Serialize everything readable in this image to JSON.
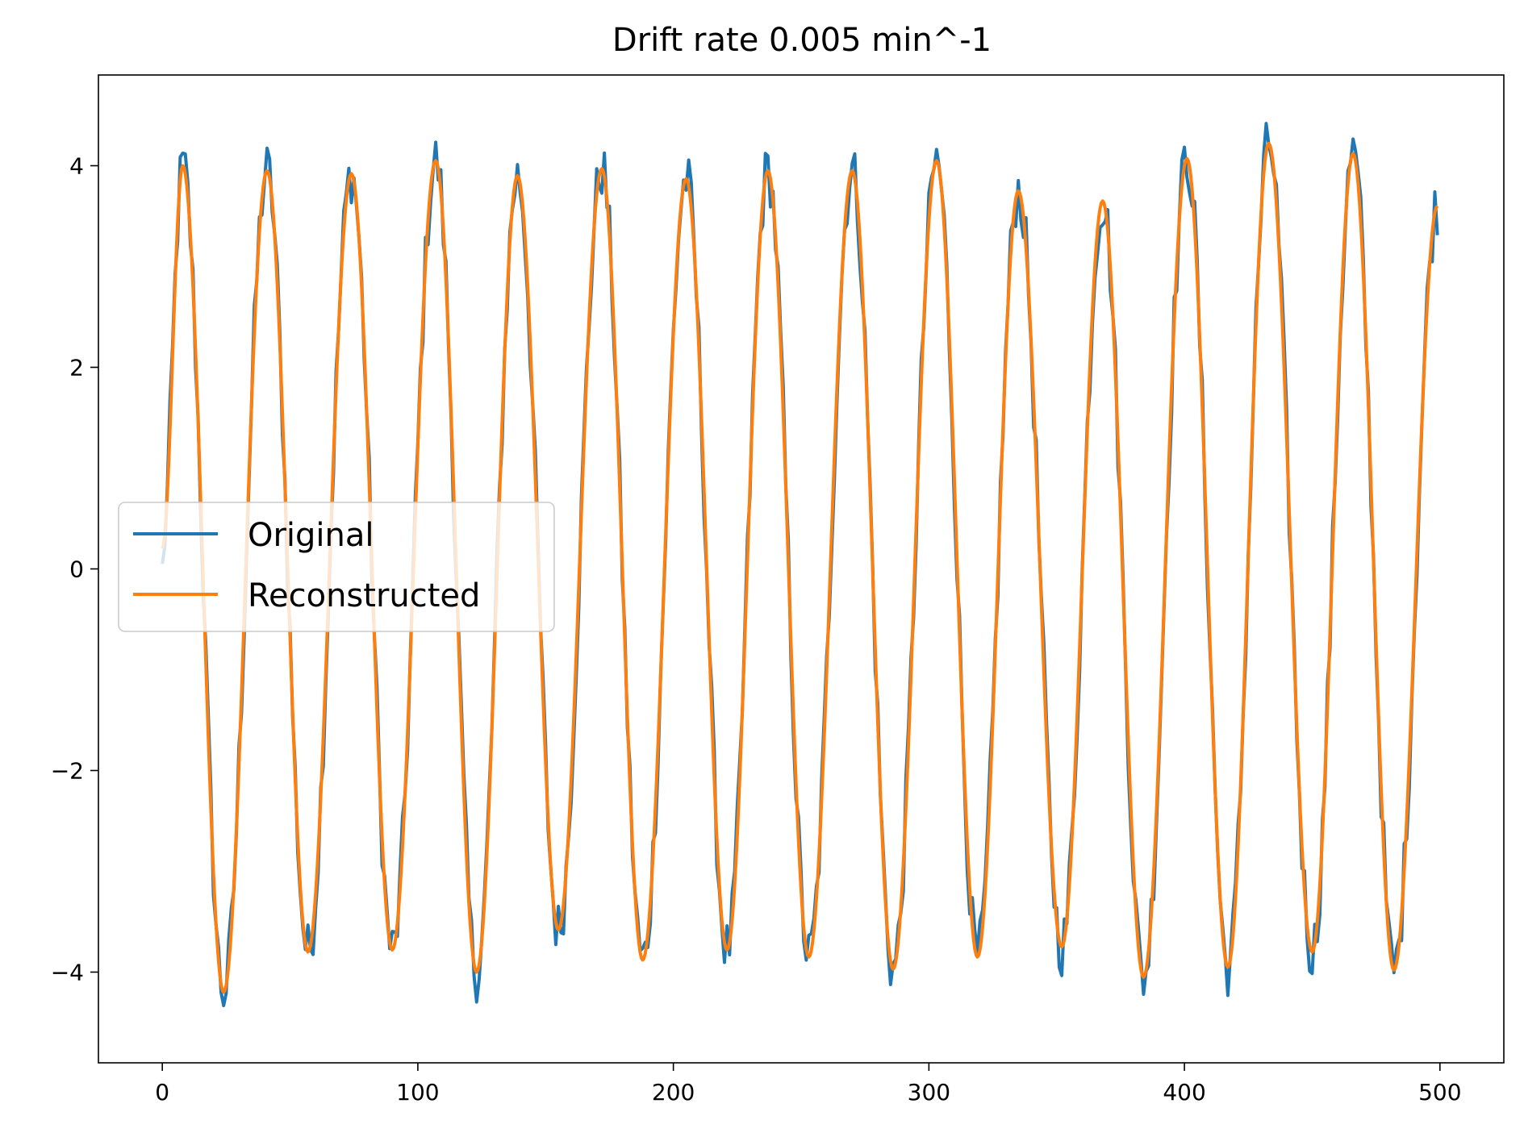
{
  "chart_data": {
    "type": "line",
    "title": "Drift rate 0.005 min^-1",
    "xlabel": "",
    "ylabel": "",
    "xlim": [
      -25,
      525
    ],
    "ylim": [
      -4.9,
      4.9
    ],
    "xticks": [
      0,
      100,
      200,
      300,
      400,
      500
    ],
    "xtick_labels": [
      "0",
      "100",
      "200",
      "300",
      "400",
      "500"
    ],
    "yticks": [
      -4,
      -2,
      0,
      2,
      4
    ],
    "ytick_labels": [
      "−4",
      "−2",
      "0",
      "2",
      "4"
    ],
    "grid": false,
    "legend_position": "center-left",
    "series": [
      {
        "name": "Original",
        "color": "#1f77b4",
        "x_range": [
          0,
          499
        ],
        "period": 32.6,
        "amplitude": 3.9,
        "noise_amplitude": 0.3
      },
      {
        "name": "Reconstructed",
        "color": "#ff7f0e",
        "x_range": [
          0,
          499
        ],
        "period": 32.6,
        "amplitude": 3.9,
        "peaks": [
          [
            8,
            4.0
          ],
          [
            41,
            3.95
          ],
          [
            74,
            3.92
          ],
          [
            107,
            4.05
          ],
          [
            139,
            3.9
          ],
          [
            172,
            3.97
          ],
          [
            205,
            3.87
          ],
          [
            237,
            3.95
          ],
          [
            270,
            3.95
          ],
          [
            303,
            4.05
          ],
          [
            335,
            3.75
          ],
          [
            368,
            3.65
          ],
          [
            401,
            4.07
          ],
          [
            433,
            4.22
          ],
          [
            466,
            4.12
          ]
        ],
        "troughs": [
          [
            24,
            -4.2
          ],
          [
            57,
            -3.8
          ],
          [
            90,
            -3.78
          ],
          [
            123,
            -4.0
          ],
          [
            155,
            -3.58
          ],
          [
            188,
            -3.88
          ],
          [
            221,
            -3.78
          ],
          [
            253,
            -3.85
          ],
          [
            286,
            -3.97
          ],
          [
            319,
            -3.85
          ],
          [
            352,
            -3.75
          ],
          [
            384,
            -4.05
          ],
          [
            417,
            -3.95
          ],
          [
            450,
            -3.8
          ],
          [
            482,
            -3.98
          ]
        ],
        "end_value": 3.6
      }
    ]
  }
}
